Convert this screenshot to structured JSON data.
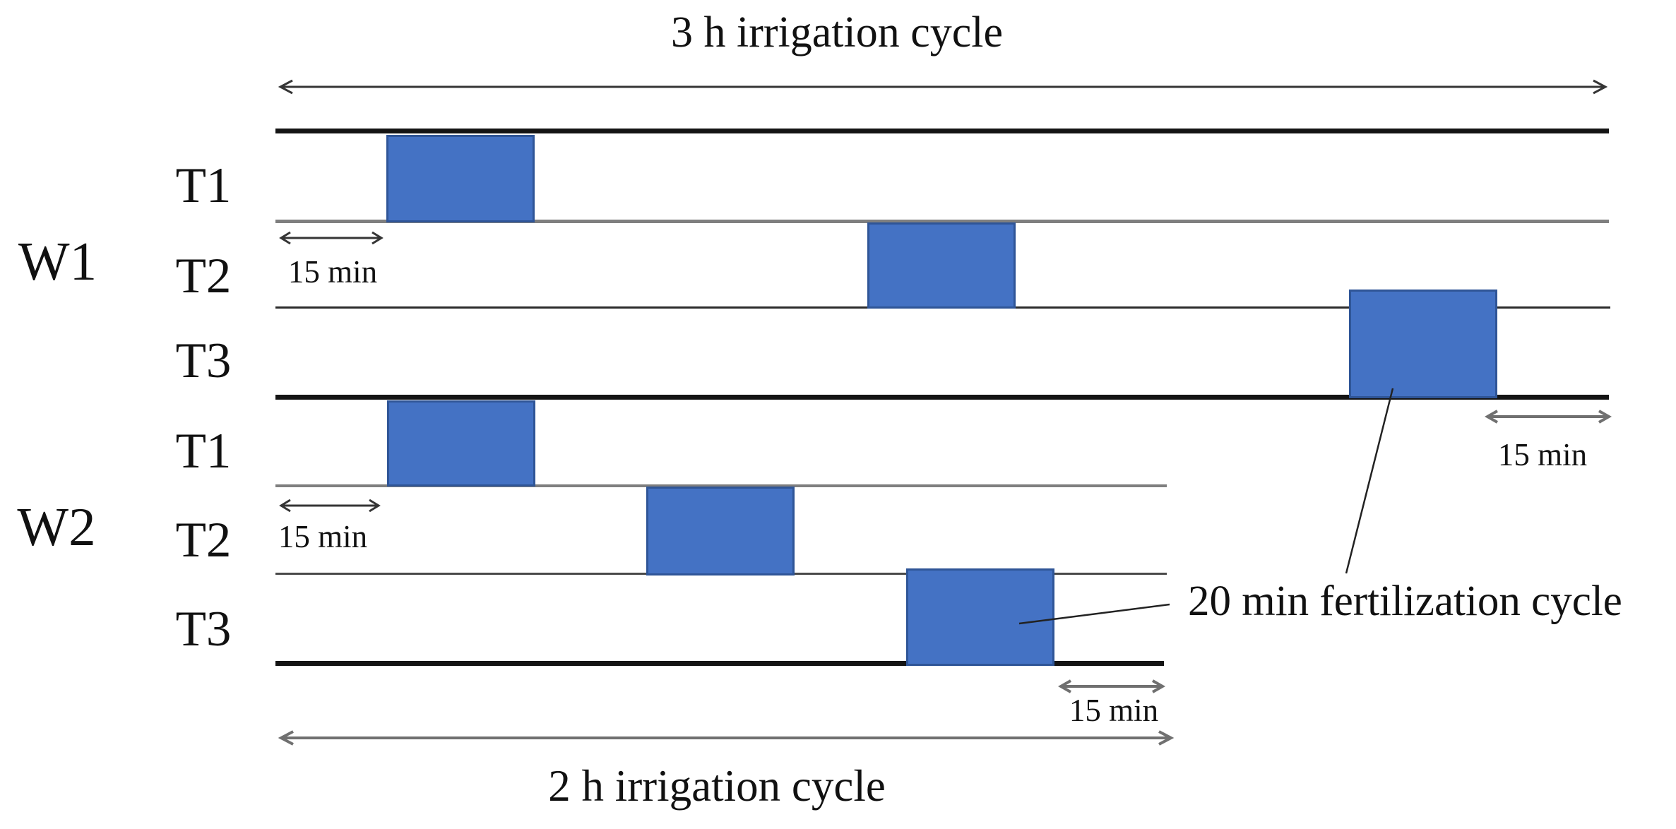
{
  "titles": {
    "top": "3 h irrigation cycle",
    "bottom": "2 h irrigation cycle"
  },
  "annotations": {
    "fertilization": "20 min fertilization cycle",
    "interval": "15 min"
  },
  "groups": [
    {
      "label": "W1",
      "cycle_label": "3 h irrigation cycle",
      "cycle_minutes": 180,
      "rows": [
        {
          "label": "T1"
        },
        {
          "label": "T2"
        },
        {
          "label": "T3"
        }
      ]
    },
    {
      "label": "W2",
      "cycle_label": "2 h irrigation cycle",
      "cycle_minutes": 120,
      "rows": [
        {
          "label": "T1"
        },
        {
          "label": "T2"
        },
        {
          "label": "T3"
        }
      ]
    }
  ],
  "schedule": {
    "events": [
      {
        "group": "W1",
        "treatment": "T1",
        "start_min": 15,
        "duration_min": 20
      },
      {
        "group": "W1",
        "treatment": "T2",
        "start_min": 80,
        "duration_min": 20
      },
      {
        "group": "W1",
        "treatment": "T3",
        "start_min": 145,
        "duration_min": 20
      },
      {
        "group": "W2",
        "treatment": "T1",
        "start_min": 15,
        "duration_min": 20
      },
      {
        "group": "W2",
        "treatment": "T2",
        "start_min": 50,
        "duration_min": 20
      },
      {
        "group": "W2",
        "treatment": "T3",
        "start_min": 85,
        "duration_min": 20
      }
    ],
    "offset_before_first_event_min": 15,
    "offset_after_last_event_min": 15,
    "fertilization_event_min": 20
  },
  "colors": {
    "event_fill": "#4472C4",
    "event_border": "#2F5597",
    "line_black": "#141414",
    "line_gray": "#7f7f7f"
  }
}
